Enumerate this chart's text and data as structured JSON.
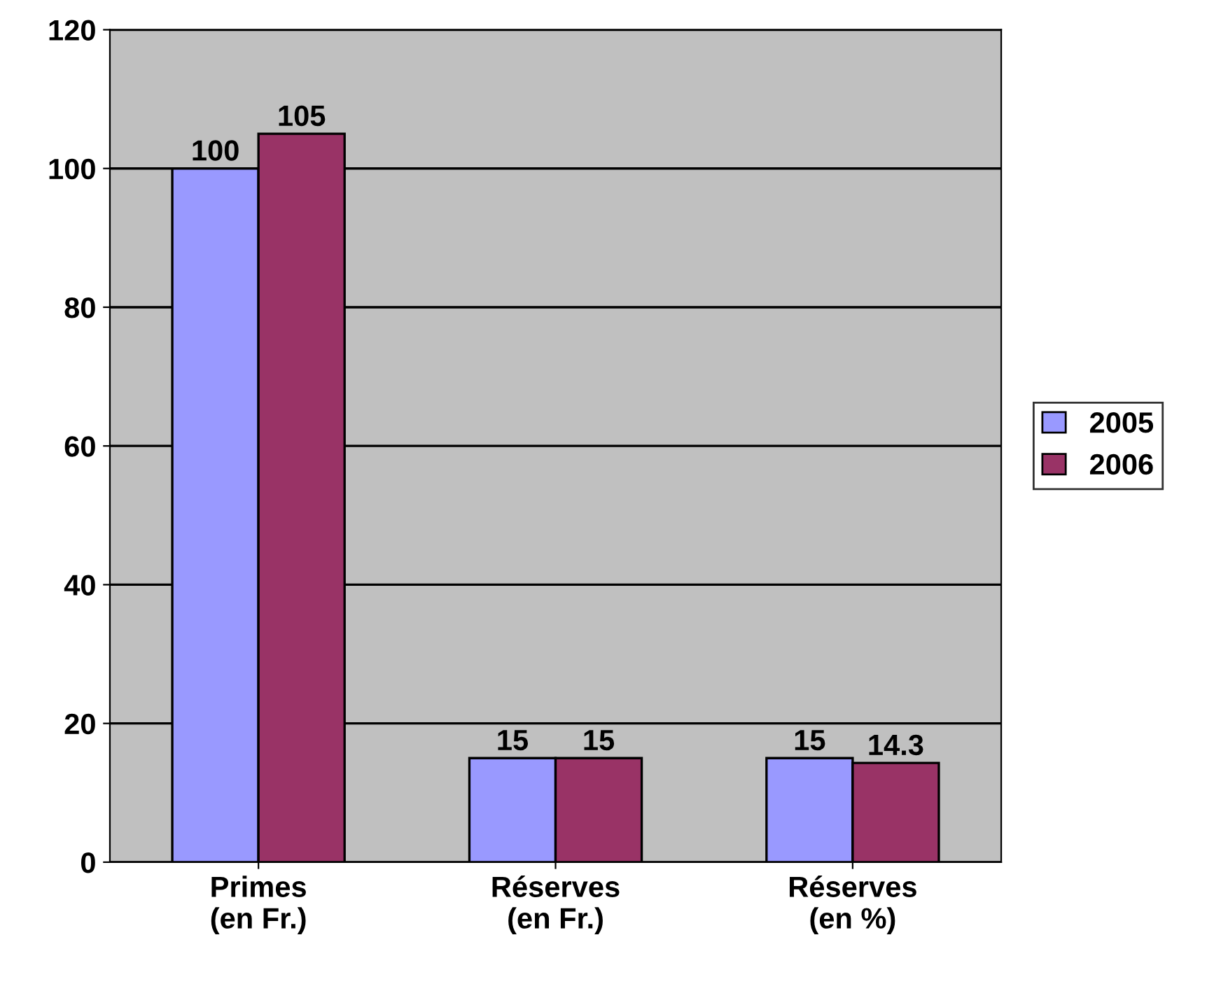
{
  "chart_data": {
    "type": "bar",
    "categories": [
      "Primes\n(en Fr.)",
      "Réserves\n(en Fr.)",
      "Réserves\n(en %)"
    ],
    "series": [
      {
        "name": "2005",
        "color": "#9999ff",
        "values": [
          100,
          15,
          15
        ]
      },
      {
        "name": "2006",
        "color": "#993366",
        "values": [
          105,
          15,
          14.3
        ]
      }
    ],
    "ylim": [
      0,
      120
    ],
    "yticks": [
      0,
      20,
      40,
      60,
      80,
      100,
      120
    ],
    "grid": "y",
    "legend": "right",
    "data_labels": true
  }
}
